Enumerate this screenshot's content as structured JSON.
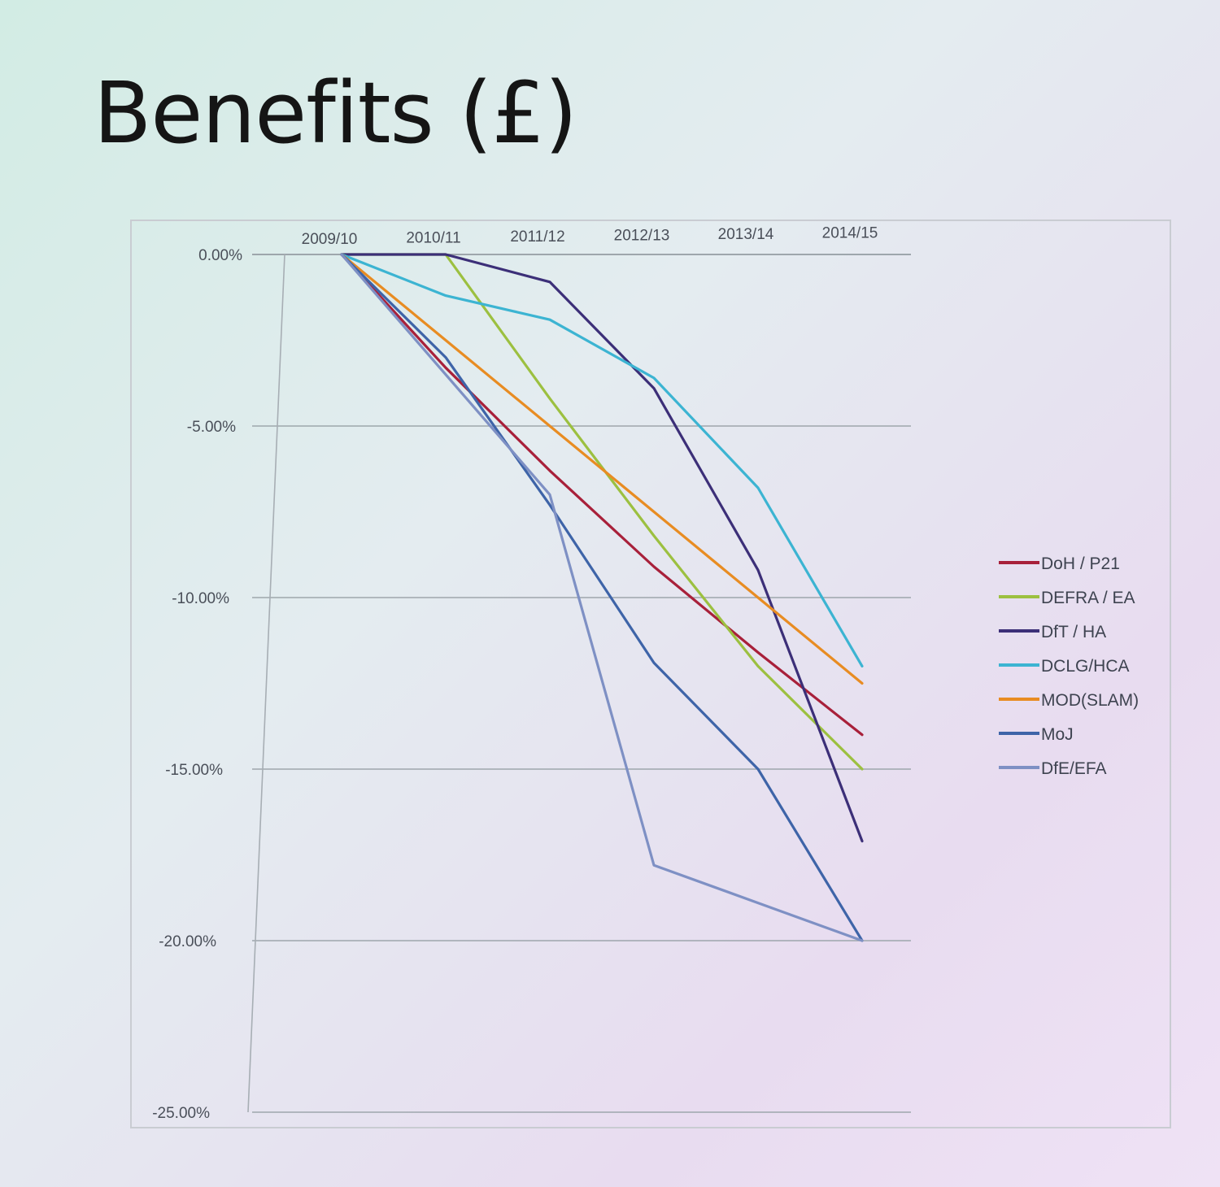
{
  "slide": {
    "title": "Benefits (£)"
  },
  "chart_data": {
    "type": "line",
    "title": "Benefits (£)",
    "x": [
      "2009/10",
      "2010/11",
      "2011/12",
      "2012/13",
      "2013/14",
      "2014/15"
    ],
    "ylim": [
      -25,
      0
    ],
    "y_ticks": [
      {
        "value": 0,
        "label": "0.00%"
      },
      {
        "value": -5,
        "label": "-5.00%"
      },
      {
        "value": -10,
        "label": "-10.00%"
      },
      {
        "value": -15,
        "label": "-15.00%"
      },
      {
        "value": -20,
        "label": "-20.00%"
      },
      {
        "value": -25,
        "label": "-25.00%"
      }
    ],
    "grid": true,
    "legend_position": "right",
    "x_axis_position": "top",
    "series": [
      {
        "name": "DoH / P21",
        "color": "#a8203a",
        "values": [
          0,
          -3.3,
          -6.3,
          -9.1,
          -11.6,
          -14.0
        ]
      },
      {
        "name": "DEFRA / EA",
        "color": "#9cc040",
        "values": [
          0,
          0,
          -4.2,
          -8.2,
          -12.0,
          -15.0
        ]
      },
      {
        "name": "DfT / HA",
        "color": "#3c2f78",
        "values": [
          0,
          0,
          -0.8,
          -3.9,
          -9.2,
          -17.1
        ]
      },
      {
        "name": "DCLG/HCA",
        "color": "#3cb4d2",
        "values": [
          0,
          -1.2,
          -1.9,
          -3.6,
          -6.8,
          -12.0
        ]
      },
      {
        "name": "MOD(SLAM)",
        "color": "#e88c22",
        "values": [
          0,
          -2.5,
          -5.0,
          -7.5,
          -10.0,
          -12.5
        ]
      },
      {
        "name": "MoJ",
        "color": "#3e64a8",
        "values": [
          0,
          -3.0,
          -7.3,
          -11.9,
          -15.0,
          -20.0
        ]
      },
      {
        "name": "DfE/EFA",
        "color": "#7e90c4",
        "values": [
          0,
          -3.5,
          -7.0,
          -17.8,
          -18.9,
          -20.0
        ]
      }
    ]
  }
}
